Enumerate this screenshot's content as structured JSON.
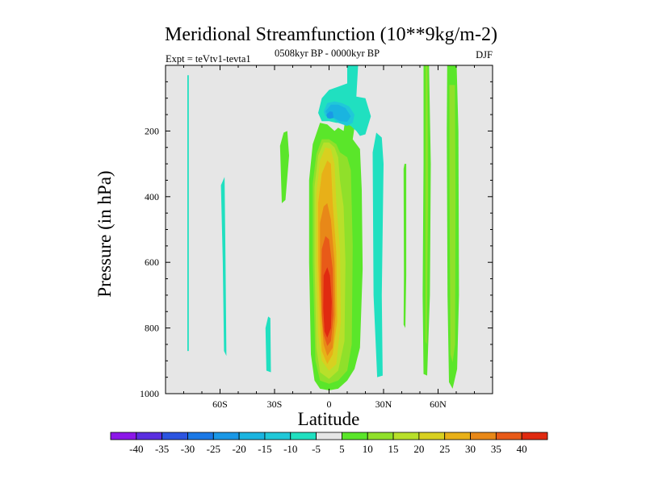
{
  "chart_data": {
    "type": "heatmap",
    "title": "Meridional Streamfunction (10**9kg/m-2)",
    "left_string": "Expt = teVtv1-tevta1",
    "center_string": "0508kyr BP - 0000kyr BP",
    "right_string": "DJF",
    "xlabel": "Latitude",
    "ylabel": "Pressure (in hPa)",
    "xlim": [
      -90,
      90
    ],
    "ylim": [
      1000,
      0
    ],
    "x_ticks": [
      {
        "value": -60,
        "label": "60S"
      },
      {
        "value": -30,
        "label": "30S"
      },
      {
        "value": 0,
        "label": "0"
      },
      {
        "value": 30,
        "label": "30N"
      },
      {
        "value": 60,
        "label": "60N"
      }
    ],
    "y_ticks": [
      {
        "value": 200,
        "label": "200"
      },
      {
        "value": 400,
        "label": "400"
      },
      {
        "value": 600,
        "label": "600"
      },
      {
        "value": 800,
        "label": "800"
      },
      {
        "value": 1000,
        "label": "1000"
      }
    ],
    "background_color": "#e6e6e6",
    "colorbar": {
      "labels": [
        "-40",
        "-35",
        "-30",
        "-25",
        "-20",
        "-15",
        "-10",
        "-5",
        "5",
        "10",
        "15",
        "20",
        "25",
        "30",
        "35",
        "40"
      ],
      "colors": [
        "#8c17e8",
        "#5a2ee0",
        "#2c54e0",
        "#1a78e6",
        "#1a98e6",
        "#1ab4e0",
        "#20c8d8",
        "#20e0c0",
        "#e6e6e6",
        "#5ae62a",
        "#90e02a",
        "#b8e02a",
        "#d8d020",
        "#e8b018",
        "#e88818",
        "#e85a18",
        "#e02a10"
      ]
    },
    "contours": [
      {
        "name": "sh-polar-strip",
        "level": "-5 to -10",
        "color": "#20e0c0",
        "polygon": [
          [
            -78,
            30
          ],
          [
            -77.2,
            30
          ],
          [
            -77.2,
            870
          ],
          [
            -78,
            870
          ]
        ]
      },
      {
        "name": "sh-60s-strip",
        "level": "-5 to -10",
        "color": "#20e0c0",
        "polygon": [
          [
            -59.5,
            365
          ],
          [
            -57.5,
            340
          ],
          [
            -57,
            600
          ],
          [
            -56.5,
            885
          ],
          [
            -57.8,
            870
          ],
          [
            -58.5,
            600
          ]
        ]
      },
      {
        "name": "sh-30s-upper",
        "level": "5 to 10",
        "color": "#5ae62a",
        "polygon": [
          [
            -27,
            245
          ],
          [
            -25,
            205
          ],
          [
            -23,
            200
          ],
          [
            -22,
            275
          ],
          [
            -24,
            410
          ],
          [
            -26,
            420
          ]
        ]
      },
      {
        "name": "sh-30s-lower",
        "level": "-5 to -10",
        "color": "#20e0c0",
        "polygon": [
          [
            -35,
            800
          ],
          [
            -33.5,
            765
          ],
          [
            -32.3,
            770
          ],
          [
            -32,
            935
          ],
          [
            -34.5,
            930
          ]
        ]
      },
      {
        "name": "tropics-5",
        "level": "5 to 10",
        "color": "#5ae62a",
        "polygon": [
          [
            -11,
            350
          ],
          [
            -9,
            240
          ],
          [
            -5,
            175
          ],
          [
            -1,
            180
          ],
          [
            3,
            200
          ],
          [
            5,
            190
          ],
          [
            8,
            200
          ],
          [
            9,
            160
          ],
          [
            12,
            162
          ],
          [
            14,
            190
          ],
          [
            13,
            225
          ],
          [
            17,
            255
          ],
          [
            18,
            380
          ],
          [
            18.5,
            620
          ],
          [
            17,
            860
          ],
          [
            14,
            925
          ],
          [
            10,
            960
          ],
          [
            5,
            985
          ],
          [
            0,
            990
          ],
          [
            -5,
            985
          ],
          [
            -8,
            960
          ],
          [
            -10,
            880
          ],
          [
            -11,
            600
          ]
        ]
      },
      {
        "name": "tropics-10",
        "level": "10 to 15",
        "color": "#90e02a",
        "polygon": [
          [
            -9,
            360
          ],
          [
            -7,
            270
          ],
          [
            -4,
            225
          ],
          [
            0,
            225
          ],
          [
            4,
            240
          ],
          [
            6,
            265
          ],
          [
            10,
            280
          ],
          [
            12,
            320
          ],
          [
            13,
            550
          ],
          [
            12.5,
            850
          ],
          [
            10,
            930
          ],
          [
            5,
            960
          ],
          [
            0,
            970
          ],
          [
            -5,
            960
          ],
          [
            -7.5,
            900
          ],
          [
            -9,
            600
          ]
        ]
      },
      {
        "name": "tropics-15",
        "level": "15 to 20",
        "color": "#b8e02a",
        "polygon": [
          [
            -8,
            370
          ],
          [
            -6,
            275
          ],
          [
            -3,
            235
          ],
          [
            0,
            235
          ],
          [
            3,
            250
          ],
          [
            5,
            280
          ],
          [
            6,
            350
          ],
          [
            8,
            430
          ],
          [
            9,
            600
          ],
          [
            8.5,
            840
          ],
          [
            5,
            930
          ],
          [
            0,
            955
          ],
          [
            -5,
            935
          ],
          [
            -7,
            860
          ],
          [
            -8,
            600
          ]
        ]
      },
      {
        "name": "tropics-20",
        "level": "20 to 25",
        "color": "#d8d020",
        "polygon": [
          [
            -7,
            390
          ],
          [
            -5,
            290
          ],
          [
            -2,
            250
          ],
          [
            1,
            255
          ],
          [
            3,
            300
          ],
          [
            4,
            420
          ],
          [
            6,
            560
          ],
          [
            6.5,
            780
          ],
          [
            4,
            910
          ],
          [
            0,
            930
          ],
          [
            -4,
            900
          ],
          [
            -6,
            820
          ],
          [
            -7,
            600
          ]
        ]
      },
      {
        "name": "tropics-25",
        "level": "25 to 30",
        "color": "#e8b018",
        "polygon": [
          [
            -6,
            420
          ],
          [
            -4,
            330
          ],
          [
            -1,
            290
          ],
          [
            1,
            300
          ],
          [
            2,
            420
          ],
          [
            4,
            570
          ],
          [
            4.5,
            780
          ],
          [
            2,
            880
          ],
          [
            -1,
            910
          ],
          [
            -4,
            870
          ],
          [
            -5,
            780
          ],
          [
            -6,
            600
          ]
        ]
      },
      {
        "name": "tropics-30",
        "level": "30 to 35",
        "color": "#e88818",
        "polygon": [
          [
            -5,
            480
          ],
          [
            -3,
            430
          ],
          [
            -1,
            420
          ],
          [
            1,
            470
          ],
          [
            3,
            600
          ],
          [
            3.5,
            760
          ],
          [
            2,
            860
          ],
          [
            -1,
            885
          ],
          [
            -3,
            850
          ],
          [
            -4,
            780
          ],
          [
            -5,
            650
          ]
        ]
      },
      {
        "name": "tropics-35",
        "level": "35 to 40",
        "color": "#e85a18",
        "polygon": [
          [
            -4,
            560
          ],
          [
            -2,
            520
          ],
          [
            0,
            530
          ],
          [
            2,
            620
          ],
          [
            2.5,
            760
          ],
          [
            1,
            840
          ],
          [
            -1,
            855
          ],
          [
            -3,
            820
          ],
          [
            -4,
            760
          ],
          [
            -4.2,
            650
          ]
        ]
      },
      {
        "name": "tropics-40",
        "level": "> 40",
        "color": "#e02a10",
        "polygon": [
          [
            -3,
            640
          ],
          [
            -1,
            615
          ],
          [
            0.5,
            640
          ],
          [
            1.5,
            720
          ],
          [
            1,
            800
          ],
          [
            -1,
            830
          ],
          [
            -2.5,
            810
          ],
          [
            -3.2,
            740
          ]
        ]
      },
      {
        "name": "upper-neg-5",
        "level": "-5 to -10",
        "color": "#20e0c0",
        "polygon": [
          [
            10,
            0
          ],
          [
            16,
            0
          ],
          [
            15,
            95
          ],
          [
            20,
            100
          ],
          [
            23,
            155
          ],
          [
            20,
            210
          ],
          [
            17,
            215
          ],
          [
            15,
            200
          ],
          [
            12,
            185
          ],
          [
            8,
            175
          ],
          [
            4,
            175
          ],
          [
            0,
            170
          ],
          [
            -4,
            170
          ],
          [
            -6,
            145
          ],
          [
            -4,
            100
          ],
          [
            0,
            75
          ],
          [
            5,
            65
          ],
          [
            10,
            55
          ]
        ]
      },
      {
        "name": "upper-neg-10",
        "level": "-10 to -15",
        "color": "#20c8d8",
        "polygon": [
          [
            -3,
            140
          ],
          [
            -1,
            115
          ],
          [
            3,
            110
          ],
          [
            7,
            115
          ],
          [
            11,
            125
          ],
          [
            14,
            150
          ],
          [
            13,
            175
          ],
          [
            10,
            185
          ],
          [
            5,
            175
          ],
          [
            2,
            160
          ],
          [
            -2,
            155
          ]
        ]
      },
      {
        "name": "upper-neg-15",
        "level": "-15 to -20",
        "color": "#1ab4e0",
        "polygon": [
          [
            -2,
            140
          ],
          [
            1,
            120
          ],
          [
            5,
            120
          ],
          [
            9,
            130
          ],
          [
            12,
            155
          ],
          [
            10,
            172
          ],
          [
            6,
            170
          ],
          [
            2,
            158
          ],
          [
            -1,
            150
          ]
        ]
      },
      {
        "name": "upper-neg-20",
        "level": "-20 to -25",
        "color": "#1a98e6",
        "polygon": [
          [
            -1.5,
            150
          ],
          [
            0.5,
            140
          ],
          [
            2,
            142
          ],
          [
            2.5,
            160
          ],
          [
            0.5,
            163
          ],
          [
            -1,
            160
          ]
        ]
      },
      {
        "name": "nh-30n-strip",
        "level": "-5 to -10",
        "color": "#20e0c0",
        "polygon": [
          [
            24,
            265
          ],
          [
            26,
            205
          ],
          [
            29,
            220
          ],
          [
            30,
            300
          ],
          [
            29,
            700
          ],
          [
            29.5,
            945
          ],
          [
            26.5,
            950
          ],
          [
            24.5,
            700
          ]
        ]
      },
      {
        "name": "nh-40n-strip",
        "level": "5 to 10",
        "color": "#5ae62a",
        "polygon": [
          [
            41,
            315
          ],
          [
            41.5,
            300
          ],
          [
            42.5,
            300
          ],
          [
            42.5,
            640
          ],
          [
            42,
            800
          ],
          [
            41,
            790
          ],
          [
            41.2,
            640
          ]
        ]
      },
      {
        "name": "nh-52n-strip",
        "level": "5 to 10",
        "color": "#5ae62a",
        "polygon": [
          [
            52,
            0
          ],
          [
            55,
            0
          ],
          [
            56,
            300
          ],
          [
            55.5,
            700
          ],
          [
            54,
            945
          ],
          [
            52,
            940
          ],
          [
            51.5,
            700
          ],
          [
            52,
            300
          ]
        ]
      },
      {
        "name": "nh-52n-inner",
        "level": "10 to 15",
        "color": "#90e02a",
        "polygon": [
          [
            53.2,
            0
          ],
          [
            54.2,
            0
          ],
          [
            54.5,
            400
          ],
          [
            53.8,
            850
          ],
          [
            53,
            840
          ],
          [
            53,
            400
          ]
        ]
      },
      {
        "name": "nh-65n-strip",
        "level": "5 to 10",
        "color": "#5ae62a",
        "polygon": [
          [
            65,
            0
          ],
          [
            70.2,
            0
          ],
          [
            71.2,
            200
          ],
          [
            71.5,
            700
          ],
          [
            70.5,
            925
          ],
          [
            68,
            985
          ],
          [
            66,
            965
          ],
          [
            65.2,
            700
          ],
          [
            64.8,
            200
          ]
        ]
      },
      {
        "name": "nh-65n-inner",
        "level": "10 to 15",
        "color": "#90e02a",
        "polygon": [
          [
            66.2,
            60
          ],
          [
            69.3,
            60
          ],
          [
            69.6,
            400
          ],
          [
            69.4,
            850
          ],
          [
            68,
            905
          ],
          [
            66.8,
            880
          ],
          [
            66.3,
            400
          ]
        ]
      }
    ]
  }
}
